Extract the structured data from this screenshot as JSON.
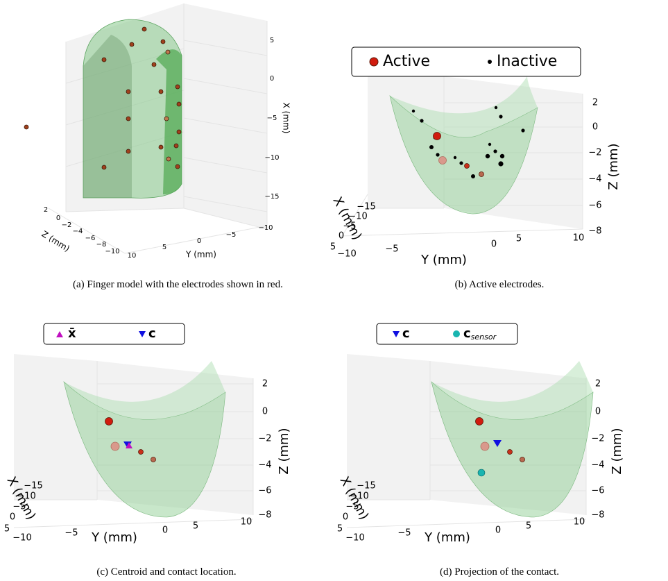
{
  "panels": [
    {
      "caption": "(a) Finger model with the electrodes shown in red.",
      "axes": {
        "x_label": "X (mm)",
        "y_label": "Y (mm)",
        "z_label": "Z (mm)",
        "x_ticks": [
          "5",
          "0",
          "−5",
          "−10",
          "−15"
        ],
        "y_ticks": [
          "10",
          "5",
          "0",
          "−5",
          "−10"
        ],
        "z_ticks": [
          "2",
          "0",
          "−2",
          "−4",
          "−6",
          "−8",
          "−10"
        ]
      }
    },
    {
      "caption": "(b) Active electrodes.",
      "legend": [
        {
          "label": "Active"
        },
        {
          "label": "Inactive"
        }
      ],
      "axes": {
        "x_label": "X (mm)",
        "y_label": "Y (mm)",
        "z_label": "Z (mm)",
        "x_ticks": [
          "−15",
          "−10",
          "−5",
          "0",
          "5"
        ],
        "y_ticks": [
          "−10",
          "−5",
          "0",
          "5",
          "10"
        ],
        "z_ticks": [
          "2",
          "0",
          "−2",
          "−4",
          "−6",
          "−8"
        ]
      }
    },
    {
      "caption": "(c) Centroid and contact location.",
      "legend": [
        {
          "label": "x̄"
        },
        {
          "label": "c"
        }
      ],
      "axes": {
        "x_label": "X (mm)",
        "y_label": "Y (mm)",
        "z_label": "Z (mm)",
        "x_ticks": [
          "−15",
          "−10",
          "−5",
          "0",
          "5"
        ],
        "y_ticks": [
          "−10",
          "−5",
          "0",
          "5",
          "10"
        ],
        "z_ticks": [
          "2",
          "0",
          "−2",
          "−4",
          "−6",
          "−8"
        ]
      }
    },
    {
      "caption": "(d) Projection of the contact.",
      "legend": [
        {
          "label": "c"
        },
        {
          "label": "c",
          "subscript": "sensor"
        }
      ],
      "axes": {
        "x_label": "X (mm)",
        "y_label": "Y (mm)",
        "z_label": "Z (mm)",
        "x_ticks": [
          "−15",
          "−10",
          "−5",
          "0",
          "5"
        ],
        "y_ticks": [
          "−10",
          "−5",
          "0",
          "5",
          "10"
        ],
        "z_ticks": [
          "2",
          "0",
          "−2",
          "−4",
          "−6",
          "−8"
        ]
      }
    }
  ]
}
